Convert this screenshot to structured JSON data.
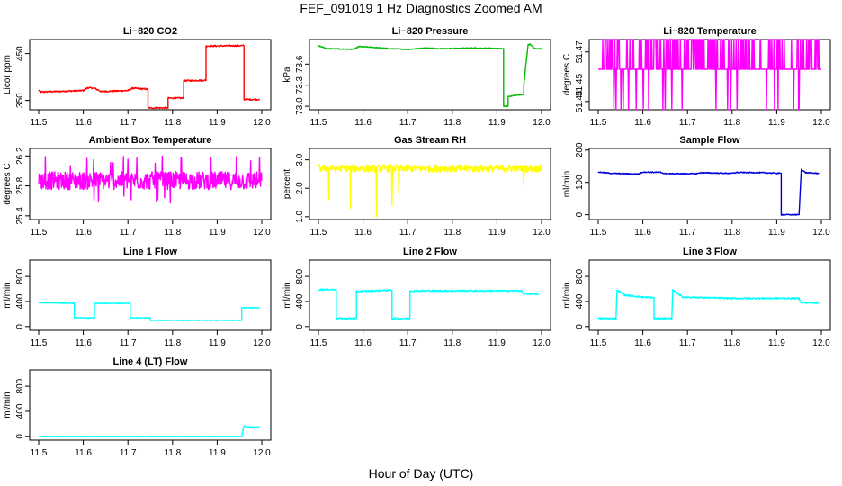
{
  "figure": {
    "title": "FEF_091019  1 Hz Diagnostics Zoomed AM",
    "xlabel": "Hour of Day (UTC)"
  },
  "chart_data": [
    {
      "type": "line",
      "title": "Li−820 CO2",
      "ylabel": "Licor ppm",
      "color": "#ff0000",
      "xlim": [
        11.5,
        12.0
      ],
      "ylim": [
        330,
        480
      ],
      "xticks": [
        "11.5",
        "11.6",
        "11.7",
        "11.8",
        "11.9",
        "12.0"
      ],
      "yticks": [
        {
          "v": 350,
          "label": "350"
        },
        {
          "v": 450,
          "label": "450"
        }
      ],
      "noise": 1.5,
      "points": [
        [
          11.5,
          372
        ],
        [
          11.505,
          368
        ],
        [
          11.6,
          371
        ],
        [
          11.61,
          377
        ],
        [
          11.625,
          376
        ],
        [
          11.64,
          369
        ],
        [
          11.7,
          371
        ],
        [
          11.71,
          376
        ],
        [
          11.745,
          374
        ],
        [
          11.745,
          334
        ],
        [
          11.79,
          334
        ],
        [
          11.79,
          355
        ],
        [
          11.825,
          355
        ],
        [
          11.825,
          392
        ],
        [
          11.875,
          393
        ],
        [
          11.875,
          466
        ],
        [
          11.96,
          467
        ],
        [
          11.96,
          352
        ],
        [
          11.995,
          352
        ]
      ]
    },
    {
      "type": "line",
      "title": "Li−820 Pressure",
      "ylabel": "kPa",
      "color": "#00bb00",
      "xlim": [
        11.5,
        12.0
      ],
      "ylim": [
        72.95,
        73.95
      ],
      "xticks": [
        "11.5",
        "11.6",
        "11.7",
        "11.8",
        "11.9",
        "12.0"
      ],
      "yticks": [
        {
          "v": 73.0,
          "label": "73.0"
        },
        {
          "v": 73.3,
          "label": "73.3"
        },
        {
          "v": 73.6,
          "label": "73.6"
        }
      ],
      "noise": 0.006,
      "points": [
        [
          11.5,
          73.86
        ],
        [
          11.52,
          73.82
        ],
        [
          11.58,
          73.81
        ],
        [
          11.59,
          73.85
        ],
        [
          11.62,
          73.84
        ],
        [
          11.66,
          73.82
        ],
        [
          11.7,
          73.81
        ],
        [
          11.74,
          73.83
        ],
        [
          11.78,
          73.82
        ],
        [
          11.85,
          73.83
        ],
        [
          11.915,
          73.82
        ],
        [
          11.915,
          73.0
        ],
        [
          11.925,
          73.0
        ],
        [
          11.925,
          73.14
        ],
        [
          11.96,
          73.17
        ],
        [
          11.96,
          73.3
        ],
        [
          11.97,
          73.88
        ],
        [
          11.975,
          73.88
        ],
        [
          11.985,
          73.82
        ],
        [
          12.0,
          73.82
        ]
      ]
    },
    {
      "type": "line",
      "title": "Li−820 Temperature",
      "ylabel": "degrees C",
      "color": "#ff00ff",
      "xlim": [
        11.5,
        12.0
      ],
      "ylim": [
        51.435,
        51.4775
      ],
      "xticks": [
        "11.5",
        "11.6",
        "11.7",
        "11.8",
        "11.9",
        "12.0"
      ],
      "yticks": [
        {
          "v": 51.44,
          "label": "51.44"
        },
        {
          "v": 51.45,
          "label": "51.45"
        },
        {
          "v": 51.47,
          "label": "51.47"
        }
      ],
      "base": 51.4595,
      "high": 51.4775,
      "low": 51.435
    },
    {
      "type": "line",
      "title": "Ambient Box Temperature",
      "ylabel": "degrees C",
      "color": "#ff00ff",
      "xlim": [
        11.5,
        12.0
      ],
      "ylim": [
        25.35,
        26.3
      ],
      "xticks": [
        "11.5",
        "11.6",
        "11.7",
        "11.8",
        "11.9",
        "12.0"
      ],
      "yticks": [
        {
          "v": 25.4,
          "label": "25.4"
        },
        {
          "v": 25.8,
          "label": "25.8"
        },
        {
          "v": 26.2,
          "label": "26.2"
        }
      ],
      "center": 25.87,
      "spread": 0.12,
      "outlier": 0.28
    },
    {
      "type": "line",
      "title": "Gas Stream RH",
      "ylabel": "percent",
      "color": "#ffff00",
      "xlim": [
        11.5,
        12.0
      ],
      "ylim": [
        0.9,
        3.4
      ],
      "xticks": [
        "11.5",
        "11.6",
        "11.7",
        "11.8",
        "11.9",
        "12.0"
      ],
      "yticks": [
        {
          "v": 1.0,
          "label": "1.0"
        },
        {
          "v": 2.0,
          "label": "2.0"
        },
        {
          "v": 3.0,
          "label": "3.0"
        }
      ],
      "center": 2.7,
      "spread": 0.13,
      "dips": [
        [
          11.523,
          1.6
        ],
        [
          11.572,
          1.3
        ],
        [
          11.63,
          1.0
        ],
        [
          11.665,
          1.4
        ],
        [
          11.68,
          1.8
        ],
        [
          11.96,
          2.1
        ]
      ]
    },
    {
      "type": "line",
      "title": "Sample Flow",
      "ylabel": "ml/min",
      "color": "#0000dd",
      "xlim": [
        11.5,
        12.0
      ],
      "ylim": [
        -15,
        205
      ],
      "xticks": [
        "11.5",
        "11.6",
        "11.7",
        "11.8",
        "11.9",
        "12.0"
      ],
      "yticks": [
        {
          "v": 0,
          "label": "0"
        },
        {
          "v": 100,
          "label": "100"
        },
        {
          "v": 200,
          "label": "200"
        }
      ],
      "noise": 1.5,
      "points": [
        [
          11.5,
          132
        ],
        [
          11.53,
          128
        ],
        [
          11.59,
          126
        ],
        [
          11.6,
          132
        ],
        [
          11.64,
          131
        ],
        [
          11.65,
          127
        ],
        [
          11.72,
          127
        ],
        [
          11.73,
          130
        ],
        [
          11.8,
          128
        ],
        [
          11.81,
          131
        ],
        [
          11.87,
          130
        ],
        [
          11.91,
          128
        ],
        [
          11.91,
          0
        ],
        [
          11.95,
          0
        ],
        [
          11.955,
          140
        ],
        [
          11.965,
          130
        ],
        [
          11.995,
          128
        ]
      ]
    },
    {
      "type": "line",
      "title": "Line 1 Flow",
      "ylabel": "ml/min",
      "color": "#00ffff",
      "xlim": [
        11.5,
        12.0
      ],
      "ylim": [
        -60,
        1060
      ],
      "xticks": [
        "11.5",
        "11.6",
        "11.7",
        "11.8",
        "11.9",
        "12.0"
      ],
      "yticks": [
        {
          "v": 0,
          "label": "0"
        },
        {
          "v": 400,
          "label": "400"
        },
        {
          "v": 800,
          "label": "800"
        }
      ],
      "noise": 5,
      "points": [
        [
          11.5,
          380
        ],
        [
          11.58,
          370
        ],
        [
          11.58,
          140
        ],
        [
          11.625,
          140
        ],
        [
          11.625,
          370
        ],
        [
          11.705,
          370
        ],
        [
          11.705,
          140
        ],
        [
          11.75,
          140
        ],
        [
          11.75,
          100
        ],
        [
          11.955,
          100
        ],
        [
          11.955,
          300
        ],
        [
          11.995,
          300
        ]
      ]
    },
    {
      "type": "line",
      "title": "Line 2 Flow",
      "ylabel": "ml/min",
      "color": "#00ffff",
      "xlim": [
        11.5,
        12.0
      ],
      "ylim": [
        -60,
        1060
      ],
      "xticks": [
        "11.5",
        "11.6",
        "11.7",
        "11.8",
        "11.9",
        "12.0"
      ],
      "yticks": [
        {
          "v": 0,
          "label": "0"
        },
        {
          "v": 400,
          "label": "400"
        },
        {
          "v": 800,
          "label": "800"
        }
      ],
      "noise": 12,
      "points": [
        [
          11.5,
          590
        ],
        [
          11.54,
          590
        ],
        [
          11.54,
          130
        ],
        [
          11.585,
          130
        ],
        [
          11.585,
          560
        ],
        [
          11.62,
          570
        ],
        [
          11.665,
          580
        ],
        [
          11.665,
          130
        ],
        [
          11.705,
          130
        ],
        [
          11.705,
          570
        ],
        [
          11.955,
          570
        ],
        [
          11.96,
          520
        ],
        [
          11.995,
          520
        ]
      ]
    },
    {
      "type": "line",
      "title": "Line 3 Flow",
      "ylabel": "ml/min",
      "color": "#00ffff",
      "xlim": [
        11.5,
        12.0
      ],
      "ylim": [
        -60,
        1060
      ],
      "xticks": [
        "11.5",
        "11.6",
        "11.7",
        "11.8",
        "11.9",
        "12.0"
      ],
      "yticks": [
        {
          "v": 0,
          "label": "0"
        },
        {
          "v": 400,
          "label": "400"
        },
        {
          "v": 800,
          "label": "800"
        }
      ],
      "noise": 12,
      "points": [
        [
          11.5,
          130
        ],
        [
          11.54,
          130
        ],
        [
          11.542,
          580
        ],
        [
          11.56,
          500
        ],
        [
          11.6,
          470
        ],
        [
          11.625,
          460
        ],
        [
          11.625,
          130
        ],
        [
          11.665,
          130
        ],
        [
          11.667,
          580
        ],
        [
          11.69,
          470
        ],
        [
          11.8,
          450
        ],
        [
          11.95,
          450
        ],
        [
          11.955,
          380
        ],
        [
          11.995,
          380
        ]
      ]
    },
    {
      "type": "line",
      "title": "Line 4 (LT) Flow",
      "ylabel": "ml/min",
      "color": "#00ffff",
      "xlim": [
        11.5,
        12.0
      ],
      "ylim": [
        -60,
        1060
      ],
      "xticks": [
        "11.5",
        "11.6",
        "11.7",
        "11.8",
        "11.9",
        "12.0"
      ],
      "yticks": [
        {
          "v": 0,
          "label": "0"
        },
        {
          "v": 400,
          "label": "400"
        },
        {
          "v": 800,
          "label": "800"
        }
      ],
      "noise": 2,
      "points": [
        [
          11.5,
          0
        ],
        [
          11.955,
          0
        ],
        [
          11.96,
          170
        ],
        [
          11.97,
          150
        ],
        [
          11.995,
          150
        ]
      ]
    }
  ]
}
